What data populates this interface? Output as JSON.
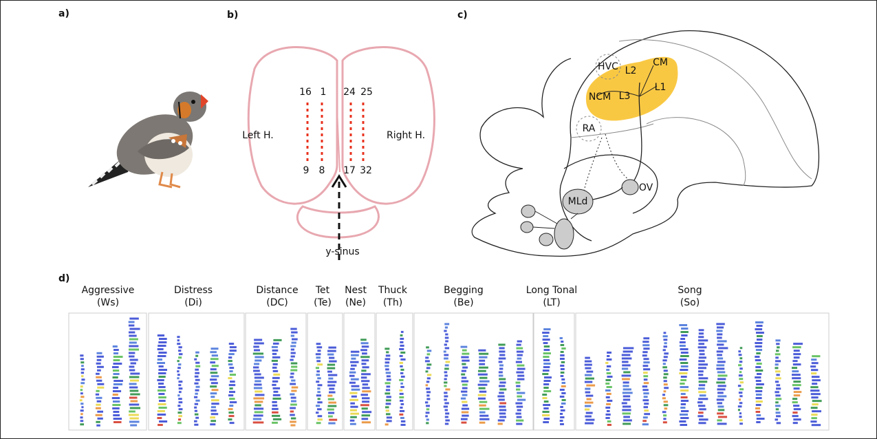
{
  "panels": {
    "a": {
      "label": "a)"
    },
    "b": {
      "label": "b)",
      "hemispheres": {
        "left": "Left H.",
        "right": "Right H."
      },
      "electrodes": [
        "16",
        "1",
        "24",
        "25",
        "9",
        "8",
        "17",
        "32"
      ],
      "sinus": "y-sinus"
    },
    "c": {
      "label": "c)",
      "regions": [
        "HVC",
        "L2",
        "CM",
        "NCM",
        "L3",
        "L1",
        "RA",
        "MLd",
        "OV"
      ]
    },
    "d": {
      "label": "d)",
      "calls": [
        {
          "name": "Aggressive",
          "code": "(Ws)"
        },
        {
          "name": "Distress",
          "code": "(Di)"
        },
        {
          "name": "Distance",
          "code": "(DC)"
        },
        {
          "name": "Tet",
          "code": "(Te)"
        },
        {
          "name": "Nest",
          "code": "(Ne)"
        },
        {
          "name": "Thuck",
          "code": "(Th)"
        },
        {
          "name": "Begging",
          "code": "(Be)"
        },
        {
          "name": "Long Tonal",
          "code": "(LT)"
        },
        {
          "name": "Song",
          "code": "(So)"
        }
      ]
    }
  }
}
